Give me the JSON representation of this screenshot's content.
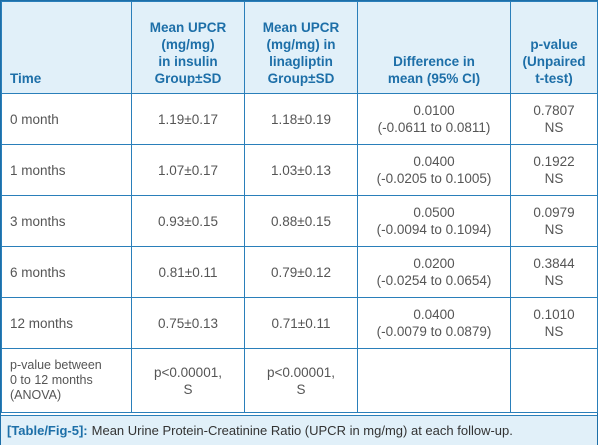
{
  "table": {
    "headers": [
      "Time",
      "Mean UPCR (mg/mg) in insulin Group±SD",
      "Mean UPCR (mg/mg) in linagliptin Group±SD",
      "Difference in mean (95% CI)",
      "p-value (Unpaired t-test)"
    ],
    "header_lines": [
      [
        "Time"
      ],
      [
        "Mean UPCR",
        "(mg/mg)",
        "in insulin",
        "Group±SD"
      ],
      [
        "Mean UPCR",
        "(mg/mg) in",
        "linagliptin",
        "Group±SD"
      ],
      [
        "Difference in",
        "mean (95% CI)"
      ],
      [
        "p-value",
        "(Unpaired",
        "t-test)"
      ]
    ],
    "rows": [
      {
        "time": "0 month",
        "insulin": "1.19±0.17",
        "linagliptin": "1.18±0.19",
        "diff": "0.0100",
        "ci": "(-0.0611 to 0.0811)",
        "p": "0.7807",
        "sig": "NS"
      },
      {
        "time": "1 months",
        "insulin": "1.07±0.17",
        "linagliptin": "1.03±0.13",
        "diff": "0.0400",
        "ci": "(-0.0205 to 0.1005)",
        "p": "0.1922",
        "sig": "NS"
      },
      {
        "time": "3 months",
        "insulin": "0.93±0.15",
        "linagliptin": "0.88±0.15",
        "diff": "0.0500",
        "ci": "(-0.0094 to 0.1094)",
        "p": "0.0979",
        "sig": "NS"
      },
      {
        "time": "6 months",
        "insulin": "0.81±0.11",
        "linagliptin": "0.79±0.12",
        "diff": "0.0200",
        "ci": "(-0.0254 to 0.0654)",
        "p": "0.3844",
        "sig": "NS"
      },
      {
        "time": "12 months",
        "insulin": "0.75±0.13",
        "linagliptin": "0.71±0.11",
        "diff": "0.0400",
        "ci": "(-0.0079 to 0.0879)",
        "p": "0.1010",
        "sig": "NS"
      }
    ],
    "anova_row": {
      "label_lines": [
        "p-value between",
        "0 to 12 months",
        "(ANOVA)"
      ],
      "insulin": "p<0.00001,",
      "insulin_sig": "S",
      "linagliptin": "p<0.00001,",
      "linagliptin_sig": "S"
    }
  },
  "caption": {
    "tag": "[Table/Fig-5]:",
    "text": "Mean Urine Protein-Creatinine Ratio (UPCR in mg/mg) at each follow-up."
  },
  "colors": {
    "border": "#2a7fba",
    "header_bg": "#e1f0f9",
    "header_text": "#1d6fa8",
    "body_text": "#555555"
  }
}
